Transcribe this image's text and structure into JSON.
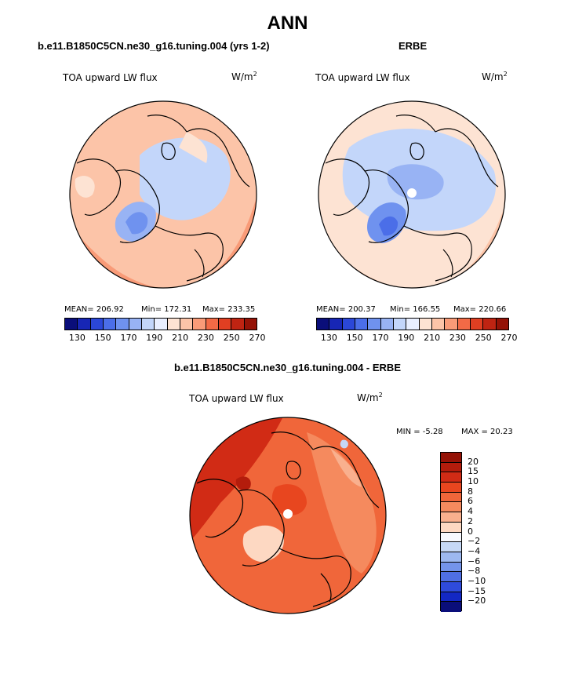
{
  "page_title": "ANN",
  "colors": {
    "land_line": "#000000",
    "panel_bg": "#ffffff"
  },
  "chart_data": [
    {
      "type": "heatmap",
      "name": "model",
      "title": "b.e11.B1850C5CN.ne30_g16.tuning.004 (yrs 1-2)",
      "variable": "TOA upward LW flux",
      "units": "W/m2",
      "units_base": "W/m",
      "units_exp": "2",
      "stats": {
        "mean": "MEAN= 206.92",
        "min": "Min= 172.31",
        "max": "Max= 233.35"
      },
      "colorbar": {
        "levels": [
          "130",
          "150",
          "170",
          "190",
          "210",
          "230",
          "250",
          "270"
        ],
        "colors": [
          "#0a0e7a",
          "#1726b5",
          "#2b47d8",
          "#4b6ee8",
          "#6f92ef",
          "#98b3f4",
          "#c3d6fa",
          "#e9efff",
          "#fde3d3",
          "#fcc4a8",
          "#f99b78",
          "#f26a46",
          "#e03f22",
          "#bf2412",
          "#951206"
        ]
      }
    },
    {
      "type": "heatmap",
      "name": "obs",
      "title": "ERBE",
      "variable": "TOA upward LW flux",
      "units": "W/m2",
      "units_base": "W/m",
      "units_exp": "2",
      "stats": {
        "mean": "MEAN= 200.37",
        "min": "Min= 166.55",
        "max": "Max= 220.66"
      },
      "colorbar": {
        "levels": [
          "130",
          "150",
          "170",
          "190",
          "210",
          "230",
          "250",
          "270"
        ],
        "colors": [
          "#0a0e7a",
          "#1726b5",
          "#2b47d8",
          "#4b6ee8",
          "#6f92ef",
          "#98b3f4",
          "#c3d6fa",
          "#e9efff",
          "#fde3d3",
          "#fcc4a8",
          "#f99b78",
          "#f26a46",
          "#e03f22",
          "#bf2412",
          "#951206"
        ]
      }
    },
    {
      "type": "heatmap",
      "name": "difference",
      "title": "b.e11.B1850C5CN.ne30_g16.tuning.004 - ERBE",
      "variable": "TOA upward LW flux",
      "units": "W/m2",
      "units_base": "W/m",
      "units_exp": "2",
      "stats": {
        "min": "MIN =   -5.28",
        "max": "MAX =   20.23"
      },
      "colorbar": {
        "levels": [
          "20",
          "15",
          "10",
          "8",
          "6",
          "4",
          "2",
          "0",
          "−2",
          "−4",
          "−6",
          "−8",
          "−10",
          "−15",
          "−20"
        ],
        "colors": [
          "#951206",
          "#b41c0c",
          "#d12b15",
          "#e8461f",
          "#f0663a",
          "#f58a5e",
          "#f9b08e",
          "#fdd8c2",
          "#f7f9ff",
          "#c6d8f6",
          "#9db8f0",
          "#7494ea",
          "#4f6fe4",
          "#2f4bdc",
          "#1328c4",
          "#0a0e7a"
        ]
      }
    }
  ]
}
